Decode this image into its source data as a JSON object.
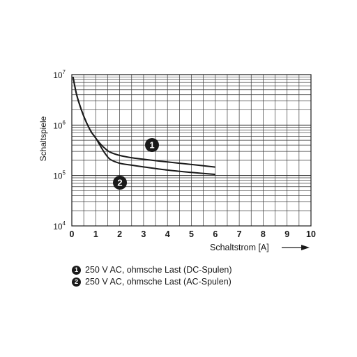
{
  "chart_data": {
    "type": "line",
    "xlabel": "Schaltstrom [A]",
    "ylabel": "Schaltspiele",
    "xlim": [
      0,
      10
    ],
    "ylim": [
      10000,
      10000000
    ],
    "yscale": "log",
    "grid": true,
    "x_ticks": [
      "0",
      "1",
      "2",
      "3",
      "4",
      "5",
      "6",
      "7",
      "8",
      "9",
      "10"
    ],
    "y_ticks": [
      {
        "base": "10",
        "exp": "4",
        "value": 10000
      },
      {
        "base": "10",
        "exp": "5",
        "value": 100000
      },
      {
        "base": "10",
        "exp": "6",
        "value": 1000000
      },
      {
        "base": "10",
        "exp": "7",
        "value": 10000000
      }
    ],
    "series": [
      {
        "marker": "1",
        "name": "250 V AC, ohmsche Last (DC-Spulen)",
        "x": [
          0.05,
          0.2,
          0.4,
          0.6,
          0.8,
          1.0,
          1.2,
          1.4,
          1.6,
          2.0,
          2.5,
          3.0,
          4.0,
          5.0,
          6.0
        ],
        "y": [
          9000000,
          4000000,
          2000000,
          1150000,
          750000,
          550000,
          420000,
          340000,
          290000,
          250000,
          225000,
          210000,
          185000,
          165000,
          147000
        ]
      },
      {
        "marker": "2",
        "name": "250 V AC, ohmsche Last (AC-Spulen)",
        "x": [
          0.05,
          0.2,
          0.4,
          0.6,
          0.8,
          1.0,
          1.2,
          1.4,
          1.6,
          2.0,
          2.5,
          3.0,
          4.0,
          5.0,
          6.0
        ],
        "y": [
          9000000,
          4000000,
          2000000,
          1150000,
          750000,
          550000,
          380000,
          270000,
          210000,
          175000,
          160000,
          148000,
          128000,
          115000,
          105000
        ]
      }
    ]
  }
}
